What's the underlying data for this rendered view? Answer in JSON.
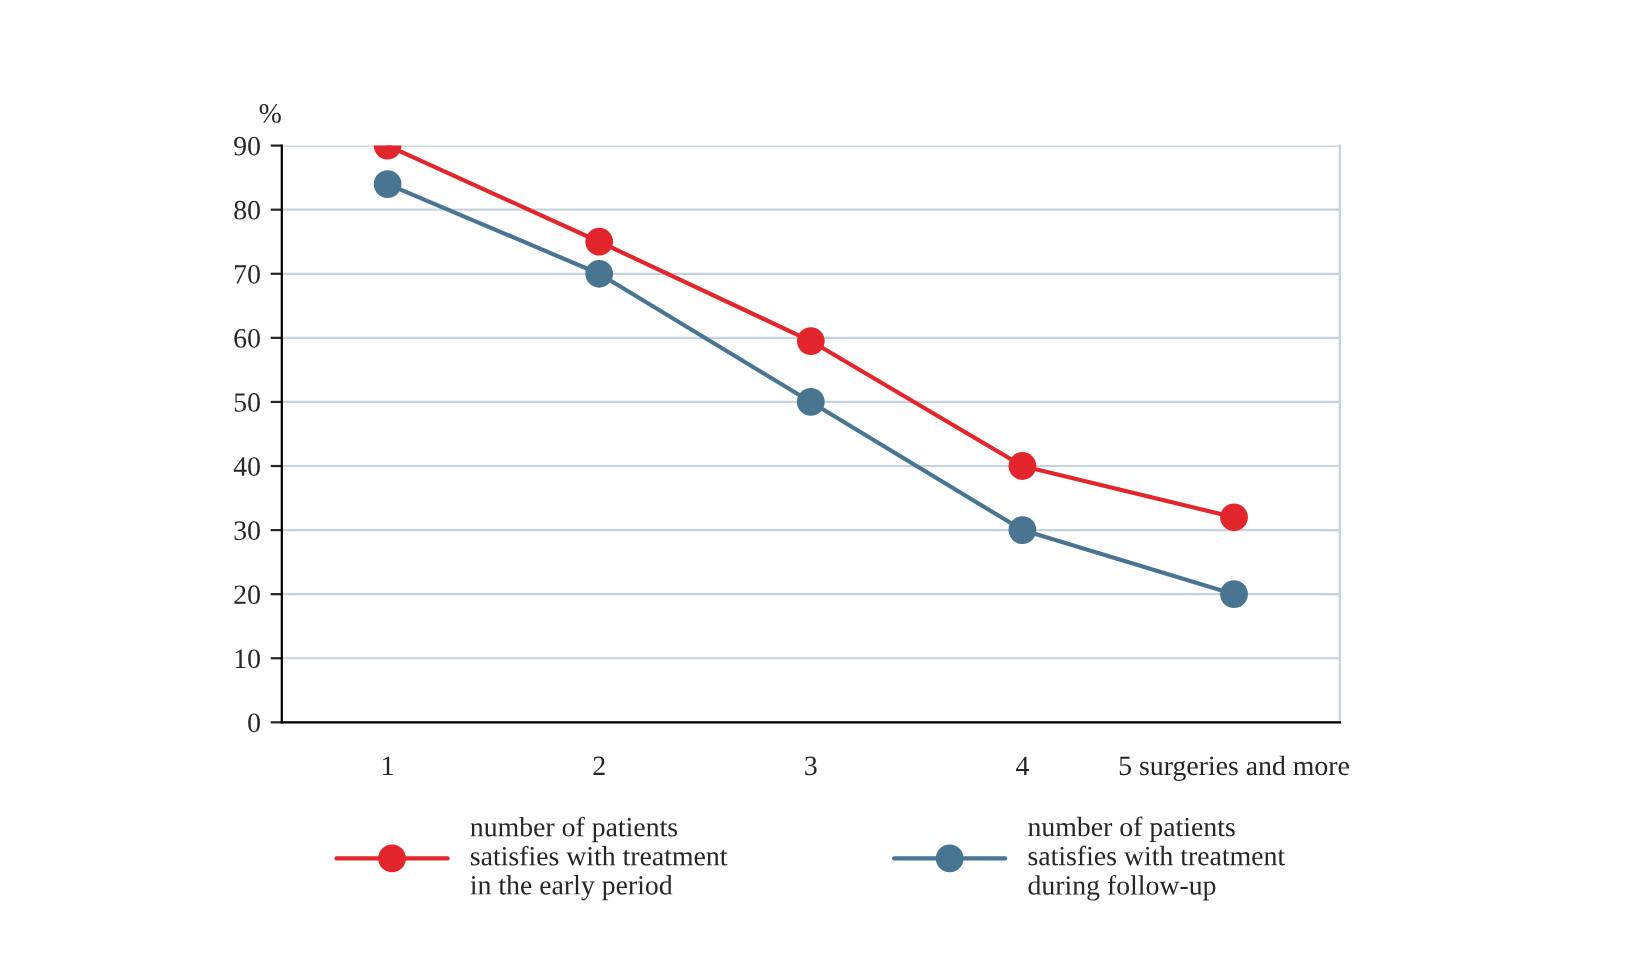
{
  "chart_data": {
    "type": "line",
    "ylabel": "%",
    "categories": [
      "1",
      "2",
      "3",
      "4",
      "5 surgeries and more"
    ],
    "series": [
      {
        "name": "number of patients\nsatisfies with treatment\nin the early period",
        "color": "#e3262e",
        "values": [
          90,
          75,
          59.5,
          40,
          32
        ]
      },
      {
        "name": "number of patients\nsatisfies with treatment\nduring follow-up",
        "color": "#4a7590",
        "values": [
          84,
          70,
          50,
          30,
          20
        ]
      }
    ],
    "ylim": [
      0,
      90
    ],
    "yticks": [
      0,
      10,
      20,
      30,
      40,
      50,
      60,
      70,
      80,
      90
    ],
    "grid": "y",
    "legend": "bottom",
    "marker": "circle",
    "line_style": "solid"
  }
}
